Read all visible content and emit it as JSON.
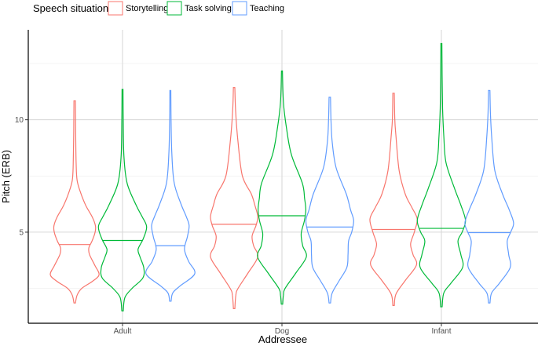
{
  "chart_data": {
    "type": "violin",
    "xlabel": "Addressee",
    "ylabel": "Pitch (ERB)",
    "categories": [
      "Adult",
      "Dog",
      "Infant"
    ],
    "yticks": [
      5,
      10
    ],
    "ylim": [
      0.95,
      14
    ],
    "grid": true,
    "legend": {
      "title": "Speech situation",
      "placement": "top-left"
    },
    "series": [
      {
        "name": "Storytelling",
        "color": "#F8766D",
        "violins": [
          {
            "min": 1.85,
            "max": 10.84,
            "median": 4.45,
            "density": [
              [
                1.85,
                0.03
              ],
              [
                2.2,
                0.1
              ],
              [
                2.5,
                0.29
              ],
              [
                2.8,
                0.71
              ],
              [
                3.1,
                1.0
              ],
              [
                3.5,
                0.84
              ],
              [
                4.0,
                0.61
              ],
              [
                4.3,
                0.58
              ],
              [
                4.6,
                0.71
              ],
              [
                5.0,
                0.84
              ],
              [
                5.3,
                0.85
              ],
              [
                5.7,
                0.71
              ],
              [
                6.2,
                0.45
              ],
              [
                6.8,
                0.23
              ],
              [
                7.3,
                0.1
              ],
              [
                8,
                0.06
              ],
              [
                9.5,
                0.04
              ],
              [
                10.84,
                0.03
              ]
            ]
          },
          {
            "min": 1.6,
            "max": 11.43,
            "median": 5.35,
            "density": [
              [
                1.6,
                0.03
              ],
              [
                2.2,
                0.07
              ],
              [
                2.5,
                0.16
              ],
              [
                3.2,
                0.58
              ],
              [
                3.9,
                0.97
              ],
              [
                4.4,
                0.8
              ],
              [
                4.83,
                0.74
              ],
              [
                5.3,
                0.9
              ],
              [
                5.7,
                0.97
              ],
              [
                6.2,
                0.85
              ],
              [
                6.69,
                0.71
              ],
              [
                7.5,
                0.34
              ],
              [
                9.0,
                0.16
              ],
              [
                10.4,
                0.06
              ],
              [
                11.43,
                0.03
              ]
            ]
          },
          {
            "min": 1.74,
            "max": 11.18,
            "median": 5.12,
            "density": [
              [
                1.74,
                0.03
              ],
              [
                2.25,
                0.1
              ],
              [
                2.85,
                0.48
              ],
              [
                3.54,
                0.94
              ],
              [
                4.0,
                0.8
              ],
              [
                4.48,
                0.7
              ],
              [
                5.0,
                0.85
              ],
              [
                5.58,
                0.97
              ],
              [
                6.1,
                0.75
              ],
              [
                6.69,
                0.48
              ],
              [
                7.74,
                0.23
              ],
              [
                9.25,
                0.1
              ],
              [
                10,
                0.05
              ],
              [
                11.18,
                0.03
              ]
            ]
          }
        ]
      },
      {
        "name": "Task solving",
        "color": "#00BA38",
        "violins": [
          {
            "min": 1.5,
            "max": 11.35,
            "median": 4.63,
            "density": [
              [
                1.5,
                0.03
              ],
              [
                2.1,
                0.1
              ],
              [
                2.5,
                0.39
              ],
              [
                2.97,
                0.84
              ],
              [
                3.43,
                0.87
              ],
              [
                3.9,
                0.72
              ],
              [
                4.24,
                0.64
              ],
              [
                4.7,
                0.85
              ],
              [
                5.24,
                0.99
              ],
              [
                5.7,
                0.8
              ],
              [
                6.22,
                0.55
              ],
              [
                7.17,
                0.19
              ],
              [
                8.32,
                0.06
              ],
              [
                10,
                0.03
              ],
              [
                11.35,
                0.02
              ]
            ]
          },
          {
            "min": 1.8,
            "max": 12.17,
            "median": 5.73,
            "density": [
              [
                1.8,
                0.03
              ],
              [
                2.2,
                0.06
              ],
              [
                2.5,
                0.13
              ],
              [
                3.2,
                0.58
              ],
              [
                3.9,
                1.0
              ],
              [
                4.4,
                0.85
              ],
              [
                4.94,
                0.79
              ],
              [
                5.5,
                0.92
              ],
              [
                5.99,
                0.98
              ],
              [
                6.5,
                0.93
              ],
              [
                7.17,
                0.84
              ],
              [
                8.44,
                0.39
              ],
              [
                9.6,
                0.19
              ],
              [
                10.77,
                0.06
              ],
              [
                12.17,
                0.02
              ]
            ]
          },
          {
            "min": 1.68,
            "max": 13.39,
            "median": 5.17,
            "density": [
              [
                1.68,
                0.03
              ],
              [
                2.3,
                0.1
              ],
              [
                2.73,
                0.39
              ],
              [
                3.43,
                0.87
              ],
              [
                4.0,
                0.8
              ],
              [
                4.6,
                0.68
              ],
              [
                5.0,
                0.85
              ],
              [
                5.52,
                0.99
              ],
              [
                6.2,
                0.8
              ],
              [
                6.92,
                0.55
              ],
              [
                8.09,
                0.19
              ],
              [
                9.25,
                0.1
              ],
              [
                10.5,
                0.05
              ],
              [
                12,
                0.03
              ],
              [
                13.39,
                0.02
              ]
            ]
          }
        ]
      },
      {
        "name": "Teaching",
        "color": "#619CFF",
        "violins": [
          {
            "min": 1.93,
            "max": 11.3,
            "median": 4.4,
            "density": [
              [
                1.93,
                0.03
              ],
              [
                2.3,
                0.1
              ],
              [
                2.6,
                0.39
              ],
              [
                3.15,
                1.0
              ],
              [
                3.7,
                0.75
              ],
              [
                4.24,
                0.58
              ],
              [
                4.8,
                0.7
              ],
              [
                5.29,
                0.77
              ],
              [
                5.7,
                0.65
              ],
              [
                6.22,
                0.45
              ],
              [
                7.17,
                0.16
              ],
              [
                8.5,
                0.06
              ],
              [
                10,
                0.03
              ],
              [
                11.3,
                0.02
              ]
            ]
          },
          {
            "min": 1.85,
            "max": 11.0,
            "median": 5.23,
            "density": [
              [
                1.85,
                0.03
              ],
              [
                2.3,
                0.1
              ],
              [
                2.85,
                0.39
              ],
              [
                3.43,
                0.7
              ],
              [
                4.0,
                0.75
              ],
              [
                4.6,
                0.77
              ],
              [
                5.0,
                0.9
              ],
              [
                5.52,
                0.98
              ],
              [
                6.0,
                0.85
              ],
              [
                6.69,
                0.68
              ],
              [
                7.86,
                0.26
              ],
              [
                9.0,
                0.1
              ],
              [
                10,
                0.05
              ],
              [
                11.0,
                0.03
              ]
            ]
          },
          {
            "min": 1.85,
            "max": 11.3,
            "median": 4.98,
            "density": [
              [
                1.85,
                0.03
              ],
              [
                2.3,
                0.1
              ],
              [
                2.73,
                0.42
              ],
              [
                3.43,
                0.86
              ],
              [
                4.0,
                0.8
              ],
              [
                4.6,
                0.74
              ],
              [
                5.0,
                0.88
              ],
              [
                5.41,
                1.0
              ],
              [
                6.0,
                0.82
              ],
              [
                6.69,
                0.55
              ],
              [
                7.74,
                0.23
              ],
              [
                9.25,
                0.1
              ],
              [
                10.3,
                0.05
              ],
              [
                11.3,
                0.03
              ]
            ]
          }
        ]
      }
    ]
  }
}
